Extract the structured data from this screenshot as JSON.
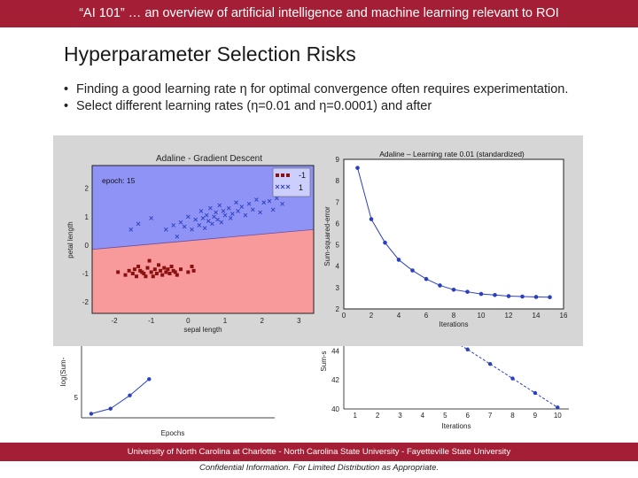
{
  "header": {
    "course_title": "“AI 101” … an overview of artificial intelligence and machine learning relevant to ROI"
  },
  "slide": {
    "title": "Hyperparameter Selection Risks",
    "bullets": [
      "Finding a good learning rate η for optimal convergence often requires experimentation.",
      "Select different learning rates (η=0.01 and η=0.0001) and after"
    ]
  },
  "footer": {
    "universities": "University of North Carolina at Charlotte  -  North Carolina State University  -  Fayetteville State University",
    "confidential": "Confidential Information. For Limited Distribution as Appropriate."
  },
  "colors": {
    "accent": "#a41f35",
    "overlay_bg": "#d6d6d6",
    "region_blue": "#8f93f5",
    "region_red": "#f89a9b",
    "line_blue": "#2a3fbf"
  },
  "chart_data": [
    {
      "type": "scatter",
      "title": "Adaline - Gradient Descent",
      "xlabel": "sepal length",
      "ylabel": "petal length",
      "annotation": "epoch: 15",
      "xlim": [
        -2.6,
        3.4
      ],
      "ylim": [
        -2.4,
        2.8
      ],
      "xticks": [
        -2,
        -1,
        0,
        1,
        2,
        3
      ],
      "yticks": [
        -2,
        -1,
        0,
        1,
        2
      ],
      "legend": {
        "placement": "top-right",
        "entries": [
          "-1",
          "1"
        ]
      },
      "decision_boundary": [
        [
          -2.6,
          -0.15
        ],
        [
          3.4,
          0.55
        ]
      ],
      "series": [
        {
          "name": "-1",
          "marker": "square",
          "color": "#8b1010",
          "points": [
            [
              -1.9,
              -0.95
            ],
            [
              -1.7,
              -1.05
            ],
            [
              -1.6,
              -0.9
            ],
            [
              -1.5,
              -1.0
            ],
            [
              -1.4,
              -1.1
            ],
            [
              -1.35,
              -0.75
            ],
            [
              -1.3,
              -0.9
            ],
            [
              -1.2,
              -1.0
            ],
            [
              -1.1,
              -0.8
            ],
            [
              -1.05,
              -0.55
            ],
            [
              -1.0,
              -0.95
            ],
            [
              -0.95,
              -1.1
            ],
            [
              -0.9,
              -0.85
            ],
            [
              -0.85,
              -1.0
            ],
            [
              -0.8,
              -0.7
            ],
            [
              -0.75,
              -0.9
            ],
            [
              -0.7,
              -1.05
            ],
            [
              -0.65,
              -0.8
            ],
            [
              -0.6,
              -0.95
            ],
            [
              -0.55,
              -0.85
            ],
            [
              -0.5,
              -1.0
            ],
            [
              -0.45,
              -0.75
            ],
            [
              -0.4,
              -0.9
            ],
            [
              -0.35,
              -0.95
            ],
            [
              -0.3,
              -1.05
            ],
            [
              -1.15,
              -1.1
            ],
            [
              -1.25,
              -0.95
            ],
            [
              -0.2,
              -0.85
            ],
            [
              0.0,
              -0.95
            ],
            [
              0.1,
              -0.75
            ],
            [
              0.15,
              -0.9
            ],
            [
              -1.45,
              -0.85
            ]
          ]
        },
        {
          "name": "1",
          "marker": "x",
          "color": "#2a3fbf",
          "points": [
            [
              -1.55,
              0.55
            ],
            [
              -1.35,
              0.75
            ],
            [
              -1.0,
              0.95
            ],
            [
              -0.6,
              0.55
            ],
            [
              -0.4,
              0.7
            ],
            [
              -0.3,
              0.3
            ],
            [
              -0.2,
              0.8
            ],
            [
              -0.1,
              0.65
            ],
            [
              0.0,
              1.0
            ],
            [
              0.1,
              0.55
            ],
            [
              0.2,
              0.9
            ],
            [
              0.3,
              0.7
            ],
            [
              0.35,
              1.2
            ],
            [
              0.4,
              0.95
            ],
            [
              0.45,
              0.6
            ],
            [
              0.5,
              1.05
            ],
            [
              0.55,
              0.85
            ],
            [
              0.6,
              1.3
            ],
            [
              0.65,
              0.75
            ],
            [
              0.7,
              1.0
            ],
            [
              0.75,
              1.15
            ],
            [
              0.8,
              0.9
            ],
            [
              0.85,
              1.4
            ],
            [
              0.9,
              0.8
            ],
            [
              0.95,
              1.2
            ],
            [
              1.0,
              1.05
            ],
            [
              1.1,
              1.3
            ],
            [
              1.15,
              0.95
            ],
            [
              1.2,
              1.1
            ],
            [
              1.3,
              1.5
            ],
            [
              1.35,
              1.2
            ],
            [
              1.45,
              1.35
            ],
            [
              1.55,
              1.05
            ],
            [
              1.65,
              1.45
            ],
            [
              1.75,
              1.25
            ],
            [
              1.85,
              1.6
            ],
            [
              1.95,
              1.15
            ],
            [
              2.05,
              1.5
            ],
            [
              2.2,
              1.55
            ],
            [
              2.3,
              1.25
            ],
            [
              2.4,
              1.65
            ],
            [
              2.55,
              1.45
            ]
          ]
        }
      ]
    },
    {
      "type": "line",
      "title": "Adaline – Learning rate 0.01 (standardized)",
      "xlabel": "Iterations",
      "ylabel": "Sum-squared-error",
      "xlim": [
        0,
        16
      ],
      "ylim": [
        2,
        9
      ],
      "xticks": [
        0,
        2,
        4,
        6,
        8,
        10,
        12,
        14,
        16
      ],
      "yticks": [
        2,
        3,
        4,
        5,
        6,
        7,
        8,
        9
      ],
      "x": [
        1,
        2,
        3,
        4,
        5,
        6,
        7,
        8,
        9,
        10,
        11,
        12,
        13,
        14,
        15
      ],
      "y": [
        8.6,
        6.2,
        5.1,
        4.3,
        3.8,
        3.4,
        3.1,
        2.9,
        2.8,
        2.7,
        2.65,
        2.6,
        2.58,
        2.56,
        2.55
      ]
    },
    {
      "type": "line",
      "title": "",
      "xlabel": "Epochs",
      "ylabel": "log(Sum-",
      "xlim": [
        0.5,
        10.5
      ],
      "ylim": [
        4,
        8
      ],
      "yticks": [
        5
      ],
      "x": [
        1,
        2,
        3,
        4
      ],
      "y": [
        4.2,
        4.45,
        5.1,
        5.9
      ]
    },
    {
      "type": "line",
      "title": "",
      "xlabel": "Iterations",
      "ylabel": "Sum-s",
      "xlim": [
        0.5,
        10.5
      ],
      "ylim": [
        40,
        45
      ],
      "xticks": [
        1,
        2,
        3,
        4,
        5,
        6,
        7,
        8,
        9,
        10
      ],
      "yticks": [
        40,
        42,
        44
      ],
      "x": [
        6,
        7,
        8,
        9,
        10
      ],
      "y": [
        44.1,
        43.1,
        42.1,
        41.1,
        40.1
      ]
    }
  ]
}
